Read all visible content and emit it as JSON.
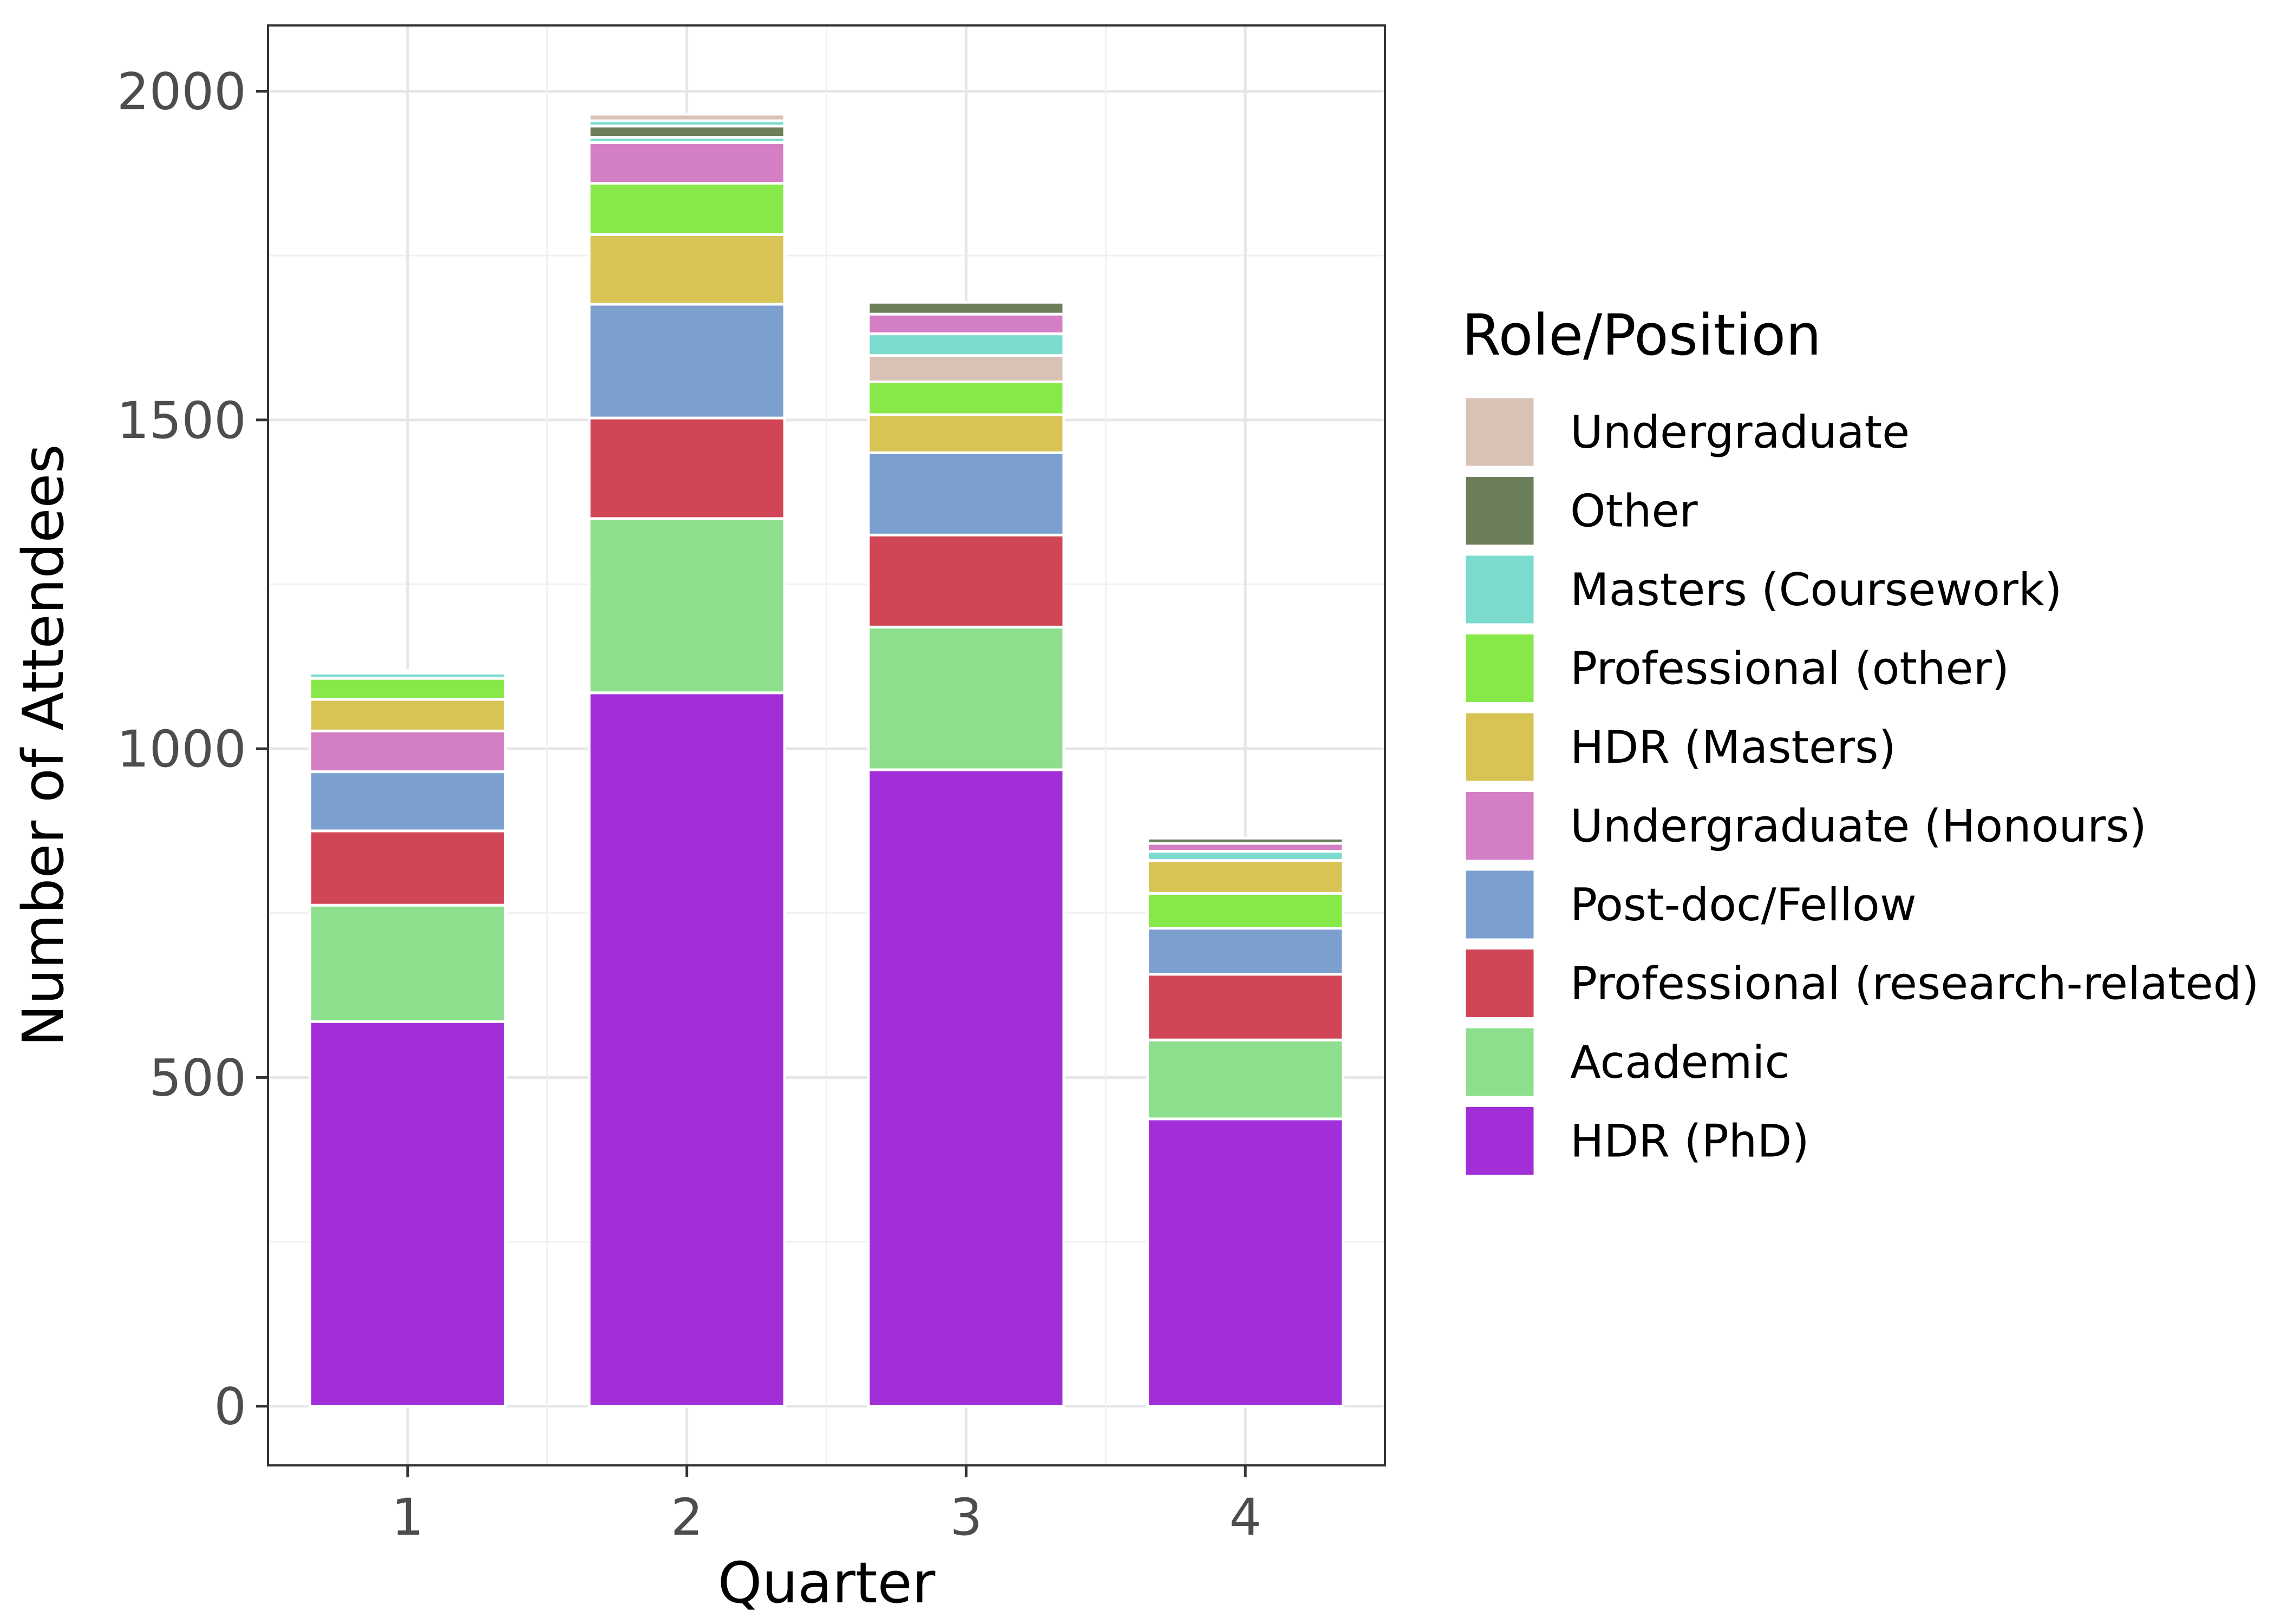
{
  "chart_data": {
    "type": "bar",
    "stacked": true,
    "title": "",
    "xlabel": "Quarter",
    "ylabel": "Number of Attendees",
    "categories": [
      "1",
      "2",
      "3",
      "4"
    ],
    "ylim": [
      -90,
      2100
    ],
    "yticks": [
      0,
      500,
      1000,
      1500,
      2000
    ],
    "grid": true,
    "legend_title": "Role/Position",
    "legend_position": "right",
    "series": [
      {
        "name": "HDR (PhD)",
        "color": "#a22ed8",
        "values": [
          585,
          1085,
          968,
          437
        ]
      },
      {
        "name": "Academic",
        "color": "#8ddf8d",
        "values": [
          177,
          265,
          217,
          120
        ]
      },
      {
        "name": "Professional (research-related)",
        "color": "#d14657",
        "values": [
          113,
          153,
          140,
          100
        ]
      },
      {
        "name": "Post-doc/Fellow",
        "color": "#7b9fcf",
        "values": [
          90,
          173,
          125,
          70
        ]
      },
      {
        "name": "Undergraduate (Honours)",
        "color": "#d47fc5",
        "values": [
          62,
          0,
          0,
          0
        ]
      },
      {
        "name": "HDR (Masters)",
        "color": "#d8c355",
        "values": [
          48,
          106,
          58,
          0
        ]
      },
      {
        "name": "Professional (other)",
        "color": "#86e849",
        "values": [
          32,
          78,
          50,
          53
        ]
      },
      {
        "name": "HDR (Masters)",
        "color": "#d8c355",
        "values": [
          0,
          0,
          0,
          50
        ]
      },
      {
        "name": "Undergraduate (Honours)",
        "color": "#d47fc5",
        "values": [
          0,
          62,
          0,
          0
        ]
      },
      {
        "name": "Undergraduate",
        "color": "#d9c1b4",
        "values": [
          0,
          0,
          40,
          0
        ]
      },
      {
        "name": "Masters (Coursework)",
        "color": "#7bdbcd",
        "values": [
          8,
          8,
          33,
          14
        ]
      },
      {
        "name": "Undergraduate (Honours)",
        "color": "#d47fc5",
        "values": [
          0,
          0,
          30,
          12
        ]
      },
      {
        "name": "Other",
        "color": "#6b7f5b",
        "values": [
          4,
          17,
          18,
          8
        ]
      },
      {
        "name": "Masters (Coursework)",
        "color": "#7bdbcd",
        "values": [
          0,
          8,
          0,
          0
        ]
      },
      {
        "name": "Undergraduate",
        "color": "#d9c1b4",
        "values": [
          0,
          10,
          0,
          0
        ]
      }
    ],
    "legend": [
      {
        "name": "Undergraduate",
        "color": "#d9c1b4"
      },
      {
        "name": "Other",
        "color": "#6b7f5b"
      },
      {
        "name": "Masters (Coursework)",
        "color": "#7bdbcd"
      },
      {
        "name": "Professional (other)",
        "color": "#86e849"
      },
      {
        "name": "HDR (Masters)",
        "color": "#d8c355"
      },
      {
        "name": "Undergraduate (Honours)",
        "color": "#d47fc5"
      },
      {
        "name": "Post-doc/Fellow",
        "color": "#7b9fcf"
      },
      {
        "name": "Professional (research-related)",
        "color": "#d14657"
      },
      {
        "name": "Academic",
        "color": "#8ddf8d"
      },
      {
        "name": "HDR (PhD)",
        "color": "#a22ed8"
      }
    ]
  }
}
